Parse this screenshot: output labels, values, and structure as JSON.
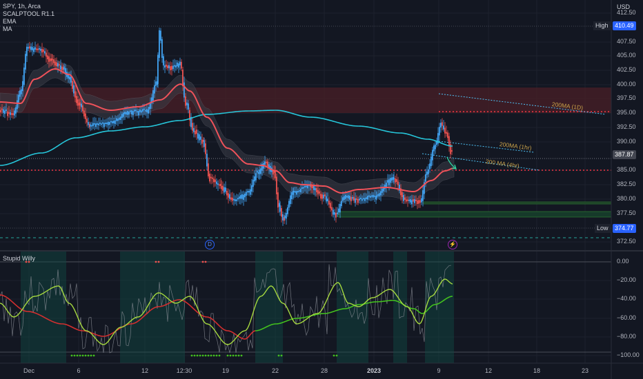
{
  "header": {
    "symbol_line": "SPY, 1h, Arca",
    "indicator_1": "SCALPTOOL R1.1",
    "indicator_2": "EMA",
    "indicator_3": "MA"
  },
  "currency": "USD",
  "price_axis": {
    "ticks": [
      "412.50",
      "407.50",
      "405.00",
      "402.50",
      "400.00",
      "397.50",
      "395.00",
      "392.50",
      "390.00",
      "385.00",
      "382.50",
      "380.00",
      "377.50",
      "372.50"
    ],
    "high_label": "High",
    "high_value": "410.49",
    "current_value": "387.87",
    "low_label": "Low",
    "low_value": "374.77"
  },
  "lower_pane": {
    "title": "Stupid Willy",
    "ticks": [
      "0.00",
      "−20.00",
      "−40.00",
      "−60.00",
      "−80.00",
      "−100.00"
    ]
  },
  "time_axis": {
    "labels": [
      "Dec",
      "6",
      "12",
      "12:30",
      "19",
      "22",
      "28",
      "2023",
      "9",
      "12",
      "18",
      "23"
    ]
  },
  "annotations": {
    "ma_1d": "200MA (1D)",
    "ma_1h": "200MA (1hr)",
    "ma_4h": "200 MA (4hr)"
  },
  "events": {
    "dividend": "D",
    "earnings": "⚡"
  },
  "colors": {
    "background": "#131722",
    "up_candle": "#42a5f5",
    "down_candle": "#ef5350",
    "ema": "#f0525a",
    "ma200": "#26c6da",
    "level_line": "#f23645",
    "support_zone": "#2e7d32",
    "resistance_zone": "#4a1f27",
    "oscillator_green": "#7ed321",
    "oscillator_red": "#d32f2f",
    "high_tag": "#2962ff",
    "current_tag": "#434651",
    "low_tag": "#2962ff"
  }
}
